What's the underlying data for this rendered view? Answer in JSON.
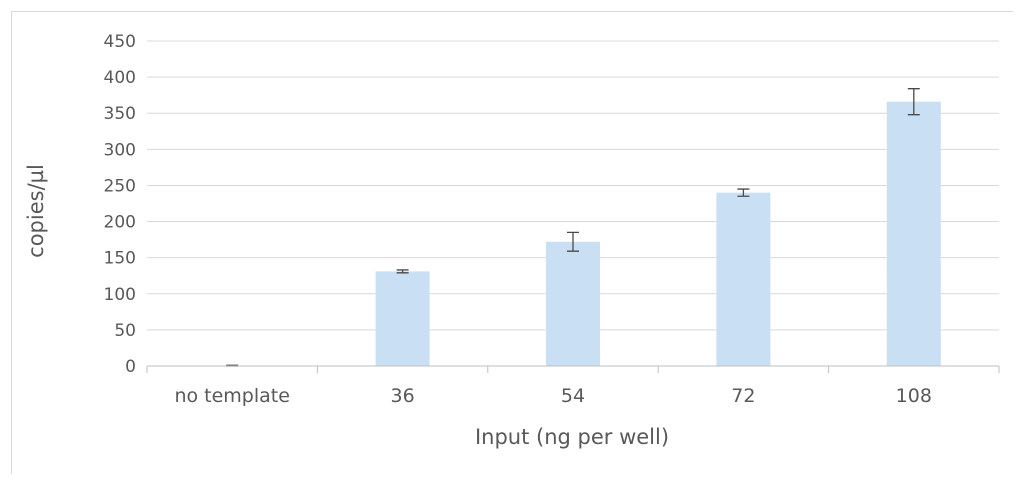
{
  "chart_data": {
    "type": "bar",
    "categories": [
      "no template",
      "36",
      "54",
      "72",
      "108"
    ],
    "values": [
      0.5,
      131,
      172,
      240,
      366
    ],
    "error": [
      0.5,
      2,
      13,
      5,
      18
    ],
    "xlabel": "Input (ng per well)",
    "ylabel": "copies/µl",
    "ylim": [
      0,
      450
    ],
    "yticks": [
      0,
      50,
      100,
      150,
      200,
      250,
      300,
      350,
      400,
      450
    ],
    "grid": true,
    "legend": "none",
    "colors": {
      "bar": "#c9dff4",
      "error": "#4a4a4a",
      "grid": "#d9d9d9",
      "axis": "#bfbfbf",
      "text": "#595959"
    }
  }
}
